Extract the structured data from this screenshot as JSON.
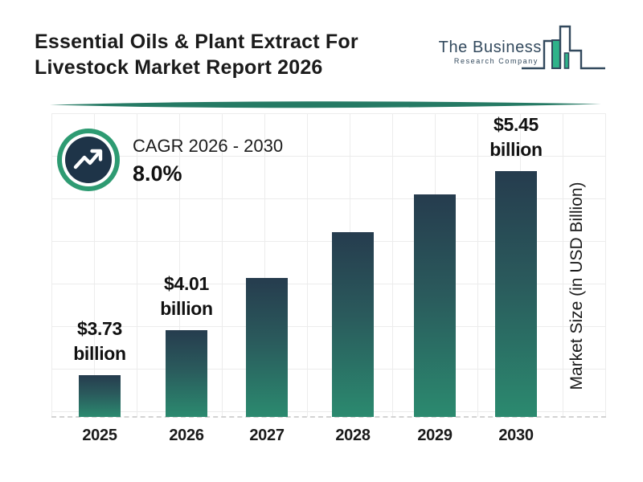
{
  "header": {
    "title_line1": "Essential Oils & Plant Extract For",
    "title_line2": "Livestock Market Report 2026",
    "logo": {
      "name": "The Business",
      "subname": "Research Company"
    }
  },
  "cagr": {
    "label": "CAGR 2026 - 2030",
    "value": "8.0%"
  },
  "chart_data": {
    "type": "bar",
    "title": "Essential Oils & Plant Extract For Livestock Market Report 2026",
    "categories": [
      "2025",
      "2026",
      "2027",
      "2028",
      "2029",
      "2030"
    ],
    "series": [
      {
        "name": "Market Size (in USD Billion)",
        "values": [
          3.73,
          4.01,
          4.33,
          4.68,
          5.05,
          5.45
        ]
      }
    ],
    "value_labels": [
      {
        "index": 0,
        "amount": "$3.73",
        "unit": "billion"
      },
      {
        "index": 1,
        "amount": "$4.01",
        "unit": "billion"
      },
      {
        "index": 5,
        "amount": "$5.45",
        "unit": "billion"
      }
    ],
    "xlabel": "",
    "ylabel": "Market Size (in USD Billion)",
    "cagr": "8.0%",
    "cagr_period": "2026 - 2030",
    "grid": true,
    "legend": false,
    "colors": {
      "bar_top": "#263c4e",
      "bar_bottom": "#2b8a6f",
      "accent_green": "#2e9b72",
      "navy": "#1e3448",
      "divider_teal": "#257a64",
      "gridline": "#ececec"
    }
  }
}
